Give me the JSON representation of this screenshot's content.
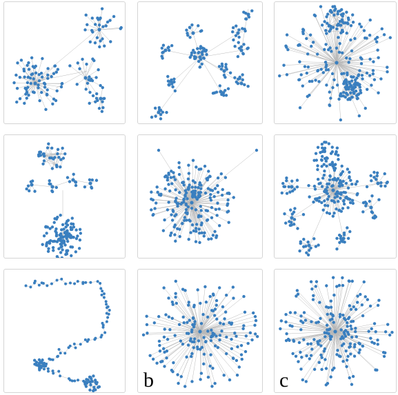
{
  "figure": {
    "panels": [
      {
        "id": "r1c1",
        "layout": "two-clusters-bridged"
      },
      {
        "id": "r1c2",
        "layout": "many-small-clusters"
      },
      {
        "id": "r1c3",
        "layout": "hub-with-dense-clusters"
      },
      {
        "id": "r2c1",
        "layout": "three-separate-components"
      },
      {
        "id": "r2c2",
        "layout": "single-dense-hub"
      },
      {
        "id": "r2c3",
        "layout": "hub-with-peripheral-groups"
      },
      {
        "id": "r3c1",
        "layout": "s-curve-chain"
      },
      {
        "id": "r3c2",
        "layout": "radial-star",
        "label": "b"
      },
      {
        "id": "r3c3",
        "layout": "radial-star-dense",
        "label": "c"
      }
    ],
    "node_color": "#3a7fbf",
    "edge_color": "#b8b8b8"
  }
}
